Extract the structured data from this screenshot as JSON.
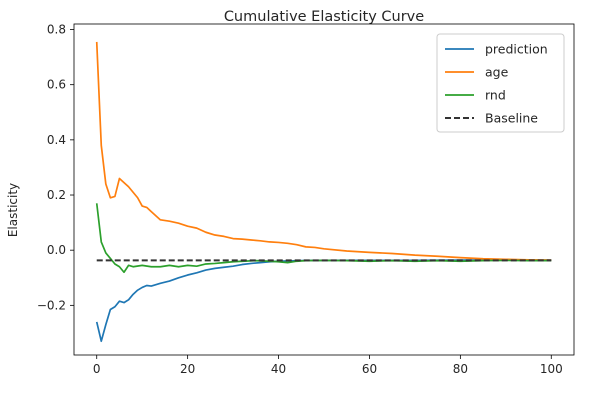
{
  "chart_data": {
    "type": "line",
    "title": "Cumulative Elasticity Curve",
    "xlabel": "",
    "ylabel": "Elasticity",
    "xlim": [
      -5,
      105
    ],
    "ylim": [
      -0.38,
      0.82
    ],
    "xticks": [
      0,
      20,
      40,
      60,
      80,
      100
    ],
    "yticks": [
      -0.2,
      0.0,
      0.2,
      0.4,
      0.6,
      0.8
    ],
    "ytick_labels": [
      "−0.2",
      "0.0",
      "0.2",
      "0.4",
      "0.6",
      "0.8"
    ],
    "grid": false,
    "legend_position": "top-right",
    "series": [
      {
        "name": "prediction",
        "color": "#1f77b4",
        "style": "solid",
        "points": [
          [
            0,
            -0.26
          ],
          [
            1,
            -0.33
          ],
          [
            2,
            -0.27
          ],
          [
            3,
            -0.215
          ],
          [
            4,
            -0.205
          ],
          [
            5,
            -0.185
          ],
          [
            6,
            -0.19
          ],
          [
            7,
            -0.18
          ],
          [
            8,
            -0.16
          ],
          [
            9,
            -0.145
          ],
          [
            10,
            -0.135
          ],
          [
            11,
            -0.128
          ],
          [
            12,
            -0.13
          ],
          [
            14,
            -0.12
          ],
          [
            16,
            -0.112
          ],
          [
            18,
            -0.1
          ],
          [
            20,
            -0.09
          ],
          [
            22,
            -0.082
          ],
          [
            24,
            -0.072
          ],
          [
            26,
            -0.066
          ],
          [
            28,
            -0.062
          ],
          [
            30,
            -0.058
          ],
          [
            32,
            -0.052
          ],
          [
            34,
            -0.048
          ],
          [
            36,
            -0.045
          ],
          [
            38,
            -0.042
          ],
          [
            40,
            -0.04
          ],
          [
            45,
            -0.038
          ],
          [
            50,
            -0.037
          ],
          [
            60,
            -0.037
          ],
          [
            70,
            -0.037
          ],
          [
            80,
            -0.036
          ],
          [
            90,
            -0.036
          ],
          [
            100,
            -0.036
          ]
        ]
      },
      {
        "name": "age",
        "color": "#ff7f0e",
        "style": "solid",
        "points": [
          [
            0,
            0.755
          ],
          [
            1,
            0.38
          ],
          [
            2,
            0.24
          ],
          [
            3,
            0.19
          ],
          [
            4,
            0.195
          ],
          [
            5,
            0.26
          ],
          [
            6,
            0.245
          ],
          [
            7,
            0.23
          ],
          [
            8,
            0.21
          ],
          [
            9,
            0.19
          ],
          [
            10,
            0.16
          ],
          [
            11,
            0.155
          ],
          [
            12,
            0.14
          ],
          [
            13,
            0.125
          ],
          [
            14,
            0.11
          ],
          [
            16,
            0.105
          ],
          [
            18,
            0.098
          ],
          [
            20,
            0.087
          ],
          [
            22,
            0.08
          ],
          [
            24,
            0.065
          ],
          [
            26,
            0.055
          ],
          [
            28,
            0.05
          ],
          [
            30,
            0.042
          ],
          [
            32,
            0.04
          ],
          [
            34,
            0.037
          ],
          [
            36,
            0.034
          ],
          [
            38,
            0.03
          ],
          [
            40,
            0.028
          ],
          [
            42,
            0.025
          ],
          [
            44,
            0.02
          ],
          [
            46,
            0.012
          ],
          [
            48,
            0.01
          ],
          [
            50,
            0.005
          ],
          [
            55,
            -0.003
          ],
          [
            60,
            -0.008
          ],
          [
            65,
            -0.012
          ],
          [
            70,
            -0.018
          ],
          [
            75,
            -0.022
          ],
          [
            80,
            -0.027
          ],
          [
            85,
            -0.031
          ],
          [
            90,
            -0.033
          ],
          [
            95,
            -0.035
          ],
          [
            100,
            -0.036
          ]
        ]
      },
      {
        "name": "rnd",
        "color": "#2ca02c",
        "style": "solid",
        "points": [
          [
            0,
            0.17
          ],
          [
            1,
            0.03
          ],
          [
            2,
            -0.01
          ],
          [
            3,
            -0.03
          ],
          [
            4,
            -0.05
          ],
          [
            5,
            -0.06
          ],
          [
            6,
            -0.08
          ],
          [
            7,
            -0.055
          ],
          [
            8,
            -0.06
          ],
          [
            10,
            -0.055
          ],
          [
            12,
            -0.06
          ],
          [
            14,
            -0.06
          ],
          [
            16,
            -0.055
          ],
          [
            18,
            -0.06
          ],
          [
            20,
            -0.055
          ],
          [
            22,
            -0.058
          ],
          [
            24,
            -0.05
          ],
          [
            26,
            -0.048
          ],
          [
            28,
            -0.045
          ],
          [
            30,
            -0.042
          ],
          [
            32,
            -0.04
          ],
          [
            35,
            -0.038
          ],
          [
            38,
            -0.04
          ],
          [
            40,
            -0.042
          ],
          [
            42,
            -0.045
          ],
          [
            44,
            -0.04
          ],
          [
            46,
            -0.038
          ],
          [
            50,
            -0.037
          ],
          [
            55,
            -0.038
          ],
          [
            60,
            -0.04
          ],
          [
            65,
            -0.038
          ],
          [
            70,
            -0.04
          ],
          [
            75,
            -0.038
          ],
          [
            80,
            -0.04
          ],
          [
            85,
            -0.038
          ],
          [
            90,
            -0.037
          ],
          [
            95,
            -0.038
          ],
          [
            100,
            -0.038
          ]
        ]
      },
      {
        "name": "Baseline",
        "color": "#333333",
        "style": "dashed",
        "points": [
          [
            0,
            -0.037
          ],
          [
            100,
            -0.037
          ]
        ]
      }
    ]
  }
}
